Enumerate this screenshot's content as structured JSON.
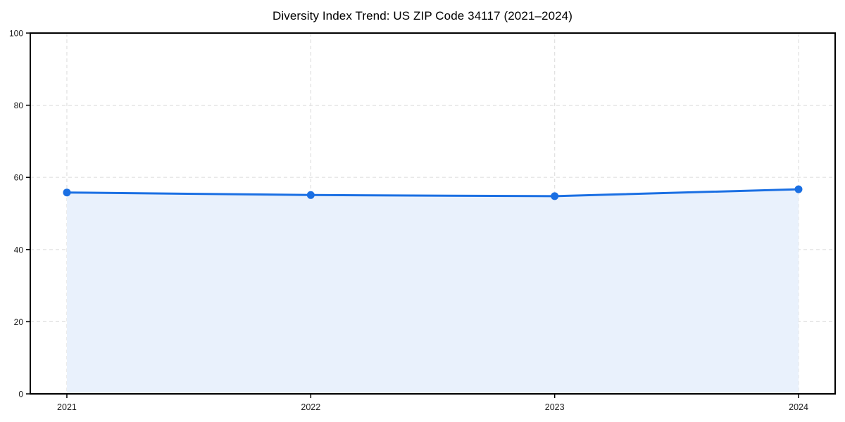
{
  "chart_data": {
    "type": "line",
    "variant": "line-with-area-fill-and-markers",
    "title": "Diversity Index Trend: US ZIP Code 34117 (2021–2024)",
    "x": [
      2021,
      2022,
      2023,
      2024
    ],
    "series": [
      {
        "name": "Diversity Index",
        "values": [
          55.8,
          55.1,
          54.8,
          56.7
        ]
      }
    ],
    "xlabel": "",
    "ylabel": "",
    "ylim": [
      0,
      100
    ],
    "yticks": [
      0,
      20,
      40,
      60,
      80,
      100
    ],
    "xticks": [
      2021,
      2022,
      2023,
      2024
    ],
    "grid": "dashed, horizontal at yticks and vertical at each year",
    "legend": "none",
    "colors": {
      "line": "#1a6fe3",
      "marker": "#1a6fe3",
      "area_fill": "#e9f1fc",
      "grid": "#e0e0e0",
      "spine": "#000000",
      "tick_label": "#1a1a1a",
      "title": "#000000",
      "background": "#ffffff"
    }
  }
}
